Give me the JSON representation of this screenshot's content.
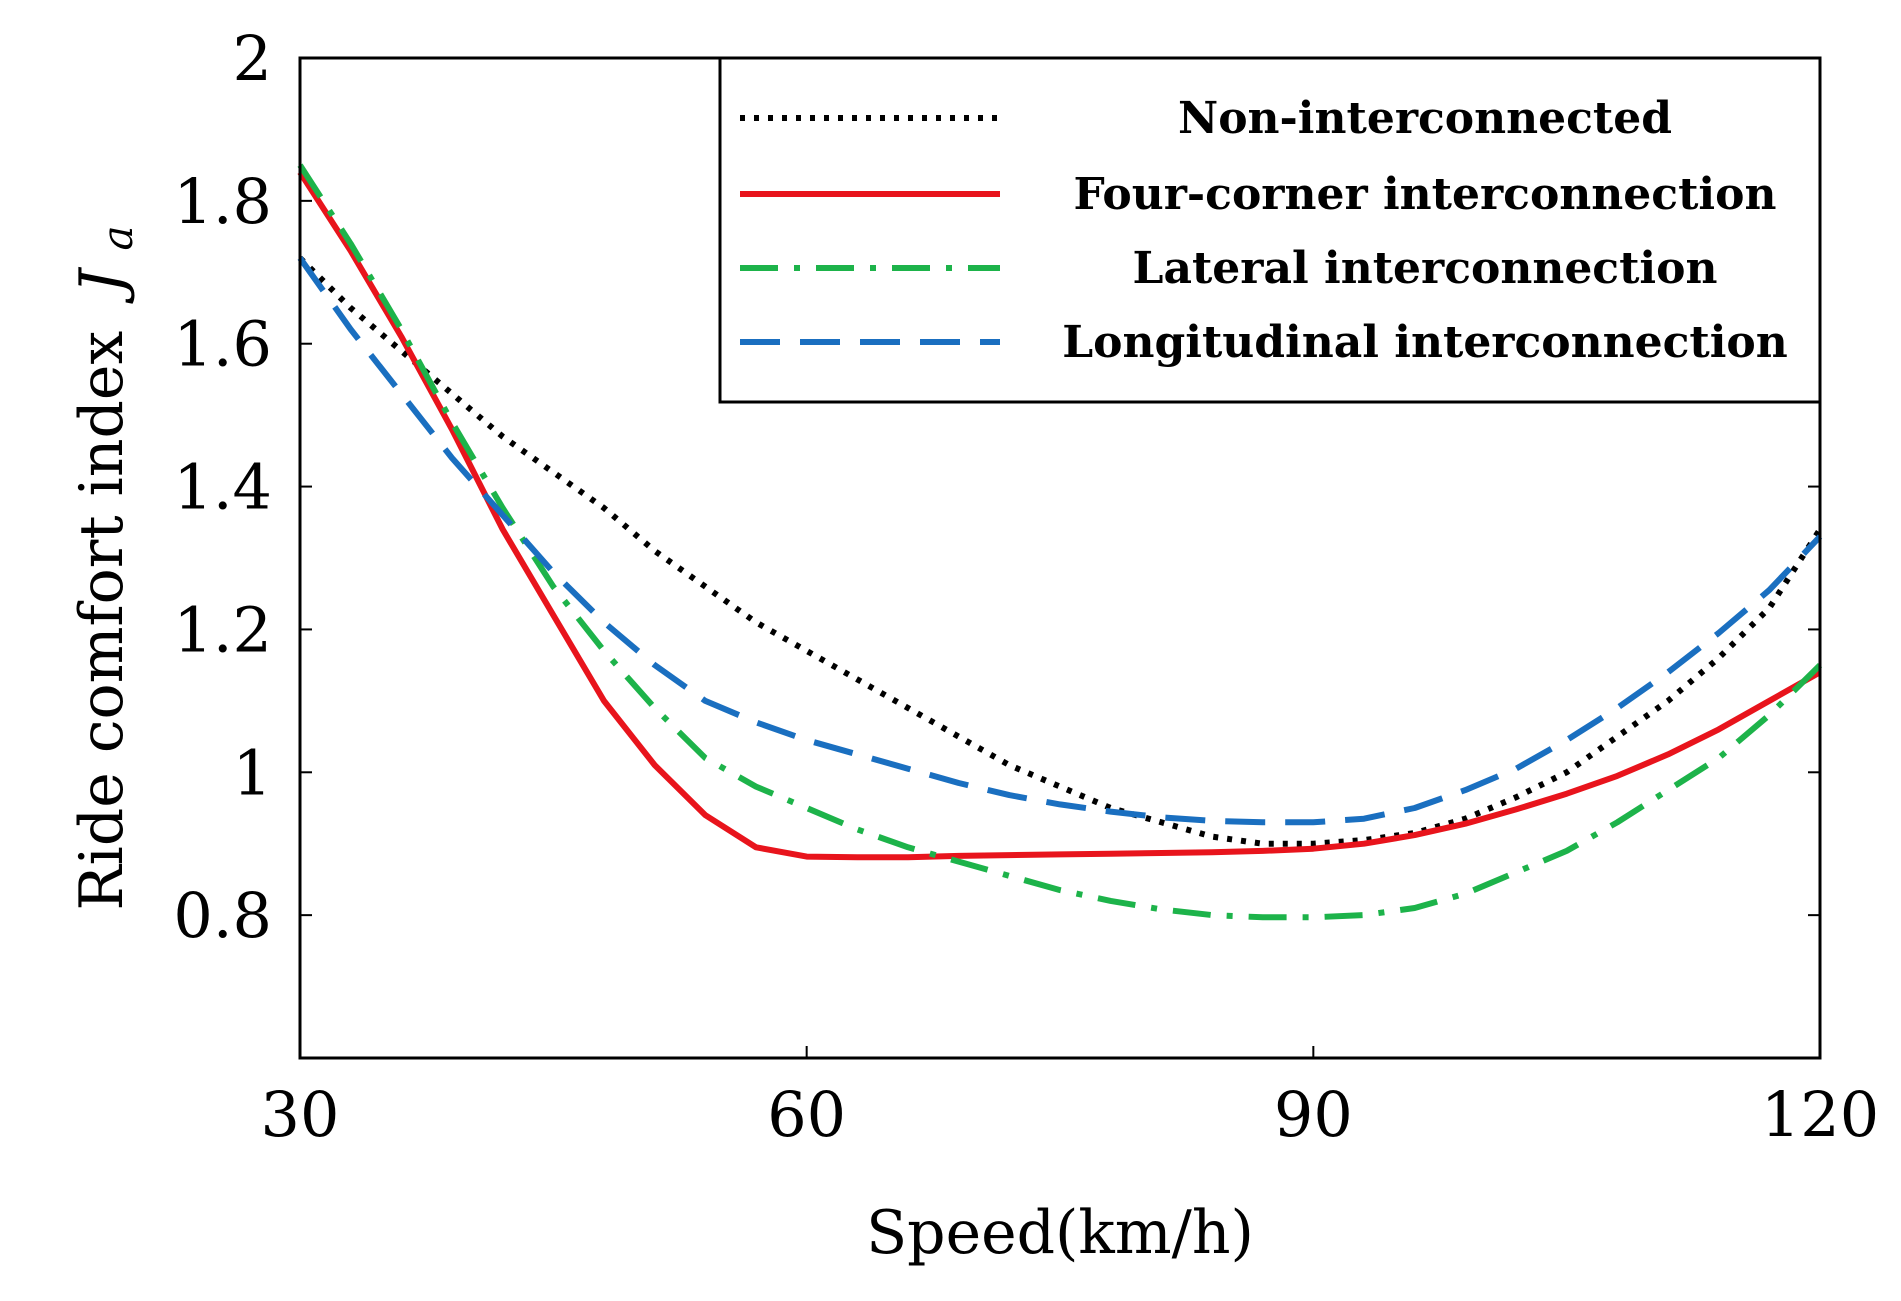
{
  "chart_data": {
    "type": "line",
    "title": "",
    "xlabel": "Speed(km/h)",
    "ylabel": "Ride comfort index",
    "ylabel_symbol": "J",
    "ylabel_subscript": "a",
    "xlim": [
      30,
      120
    ],
    "ylim": [
      0.6,
      2.0
    ],
    "xticks": [
      30,
      60,
      90,
      120
    ],
    "yticks": [
      0.8,
      1.0,
      1.2,
      1.4,
      1.6,
      1.8,
      2.0
    ],
    "ytick_labels": [
      "0.8",
      "1",
      "1.2",
      "1.4",
      "1.6",
      "1.8",
      "2"
    ],
    "grid": false,
    "legend_position": "top-right",
    "series": [
      {
        "name": "Non-interconnected",
        "color": "#000000",
        "style": "dotted",
        "x": [
          30,
          33,
          36,
          39,
          42,
          45,
          48,
          51,
          54,
          57,
          60,
          63,
          66,
          69,
          72,
          75,
          78,
          81,
          84,
          87,
          90,
          93,
          96,
          99,
          102,
          105,
          108,
          111,
          114,
          117,
          120
        ],
        "y": [
          1.72,
          1.65,
          1.59,
          1.53,
          1.47,
          1.42,
          1.37,
          1.31,
          1.26,
          1.21,
          1.17,
          1.13,
          1.09,
          1.05,
          1.01,
          0.98,
          0.95,
          0.93,
          0.91,
          0.9,
          0.9,
          0.905,
          0.915,
          0.935,
          0.965,
          1.0,
          1.05,
          1.1,
          1.16,
          1.23,
          1.34
        ]
      },
      {
        "name": "Four-corner interconnection",
        "color": "#e8141c",
        "style": "solid",
        "x": [
          30,
          33,
          36,
          39,
          42,
          45,
          48,
          51,
          54,
          57,
          60,
          63,
          66,
          69,
          72,
          75,
          78,
          81,
          84,
          87,
          90,
          93,
          96,
          99,
          102,
          105,
          108,
          111,
          114,
          117,
          120
        ],
        "y": [
          1.84,
          1.73,
          1.61,
          1.48,
          1.34,
          1.22,
          1.1,
          1.01,
          0.94,
          0.895,
          0.882,
          0.881,
          0.881,
          0.883,
          0.884,
          0.885,
          0.886,
          0.887,
          0.888,
          0.89,
          0.893,
          0.9,
          0.912,
          0.928,
          0.948,
          0.97,
          0.995,
          1.025,
          1.06,
          1.1,
          1.14
        ]
      },
      {
        "name": "Lateral interconnection",
        "color": "#1db34a",
        "style": "dashdot",
        "x": [
          30,
          33,
          36,
          39,
          42,
          45,
          48,
          51,
          54,
          57,
          60,
          63,
          66,
          69,
          72,
          75,
          78,
          81,
          84,
          87,
          90,
          93,
          96,
          99,
          102,
          105,
          108,
          111,
          114,
          117,
          120
        ],
        "y": [
          1.85,
          1.74,
          1.62,
          1.49,
          1.37,
          1.26,
          1.17,
          1.09,
          1.02,
          0.98,
          0.95,
          0.92,
          0.895,
          0.875,
          0.855,
          0.835,
          0.82,
          0.808,
          0.8,
          0.797,
          0.797,
          0.8,
          0.81,
          0.83,
          0.86,
          0.89,
          0.93,
          0.975,
          1.02,
          1.08,
          1.15
        ]
      },
      {
        "name": "Longitudinal interconnection",
        "color": "#1a6fc0",
        "style": "dashed",
        "x": [
          30,
          33,
          36,
          39,
          42,
          45,
          48,
          51,
          54,
          57,
          60,
          63,
          66,
          69,
          72,
          75,
          78,
          81,
          84,
          87,
          90,
          93,
          96,
          99,
          102,
          105,
          108,
          111,
          114,
          117,
          120
        ],
        "y": [
          1.72,
          1.62,
          1.53,
          1.44,
          1.36,
          1.28,
          1.21,
          1.15,
          1.1,
          1.07,
          1.045,
          1.025,
          1.005,
          0.985,
          0.968,
          0.955,
          0.945,
          0.937,
          0.932,
          0.93,
          0.93,
          0.935,
          0.95,
          0.975,
          1.005,
          1.045,
          1.09,
          1.14,
          1.195,
          1.255,
          1.33
        ]
      }
    ]
  }
}
